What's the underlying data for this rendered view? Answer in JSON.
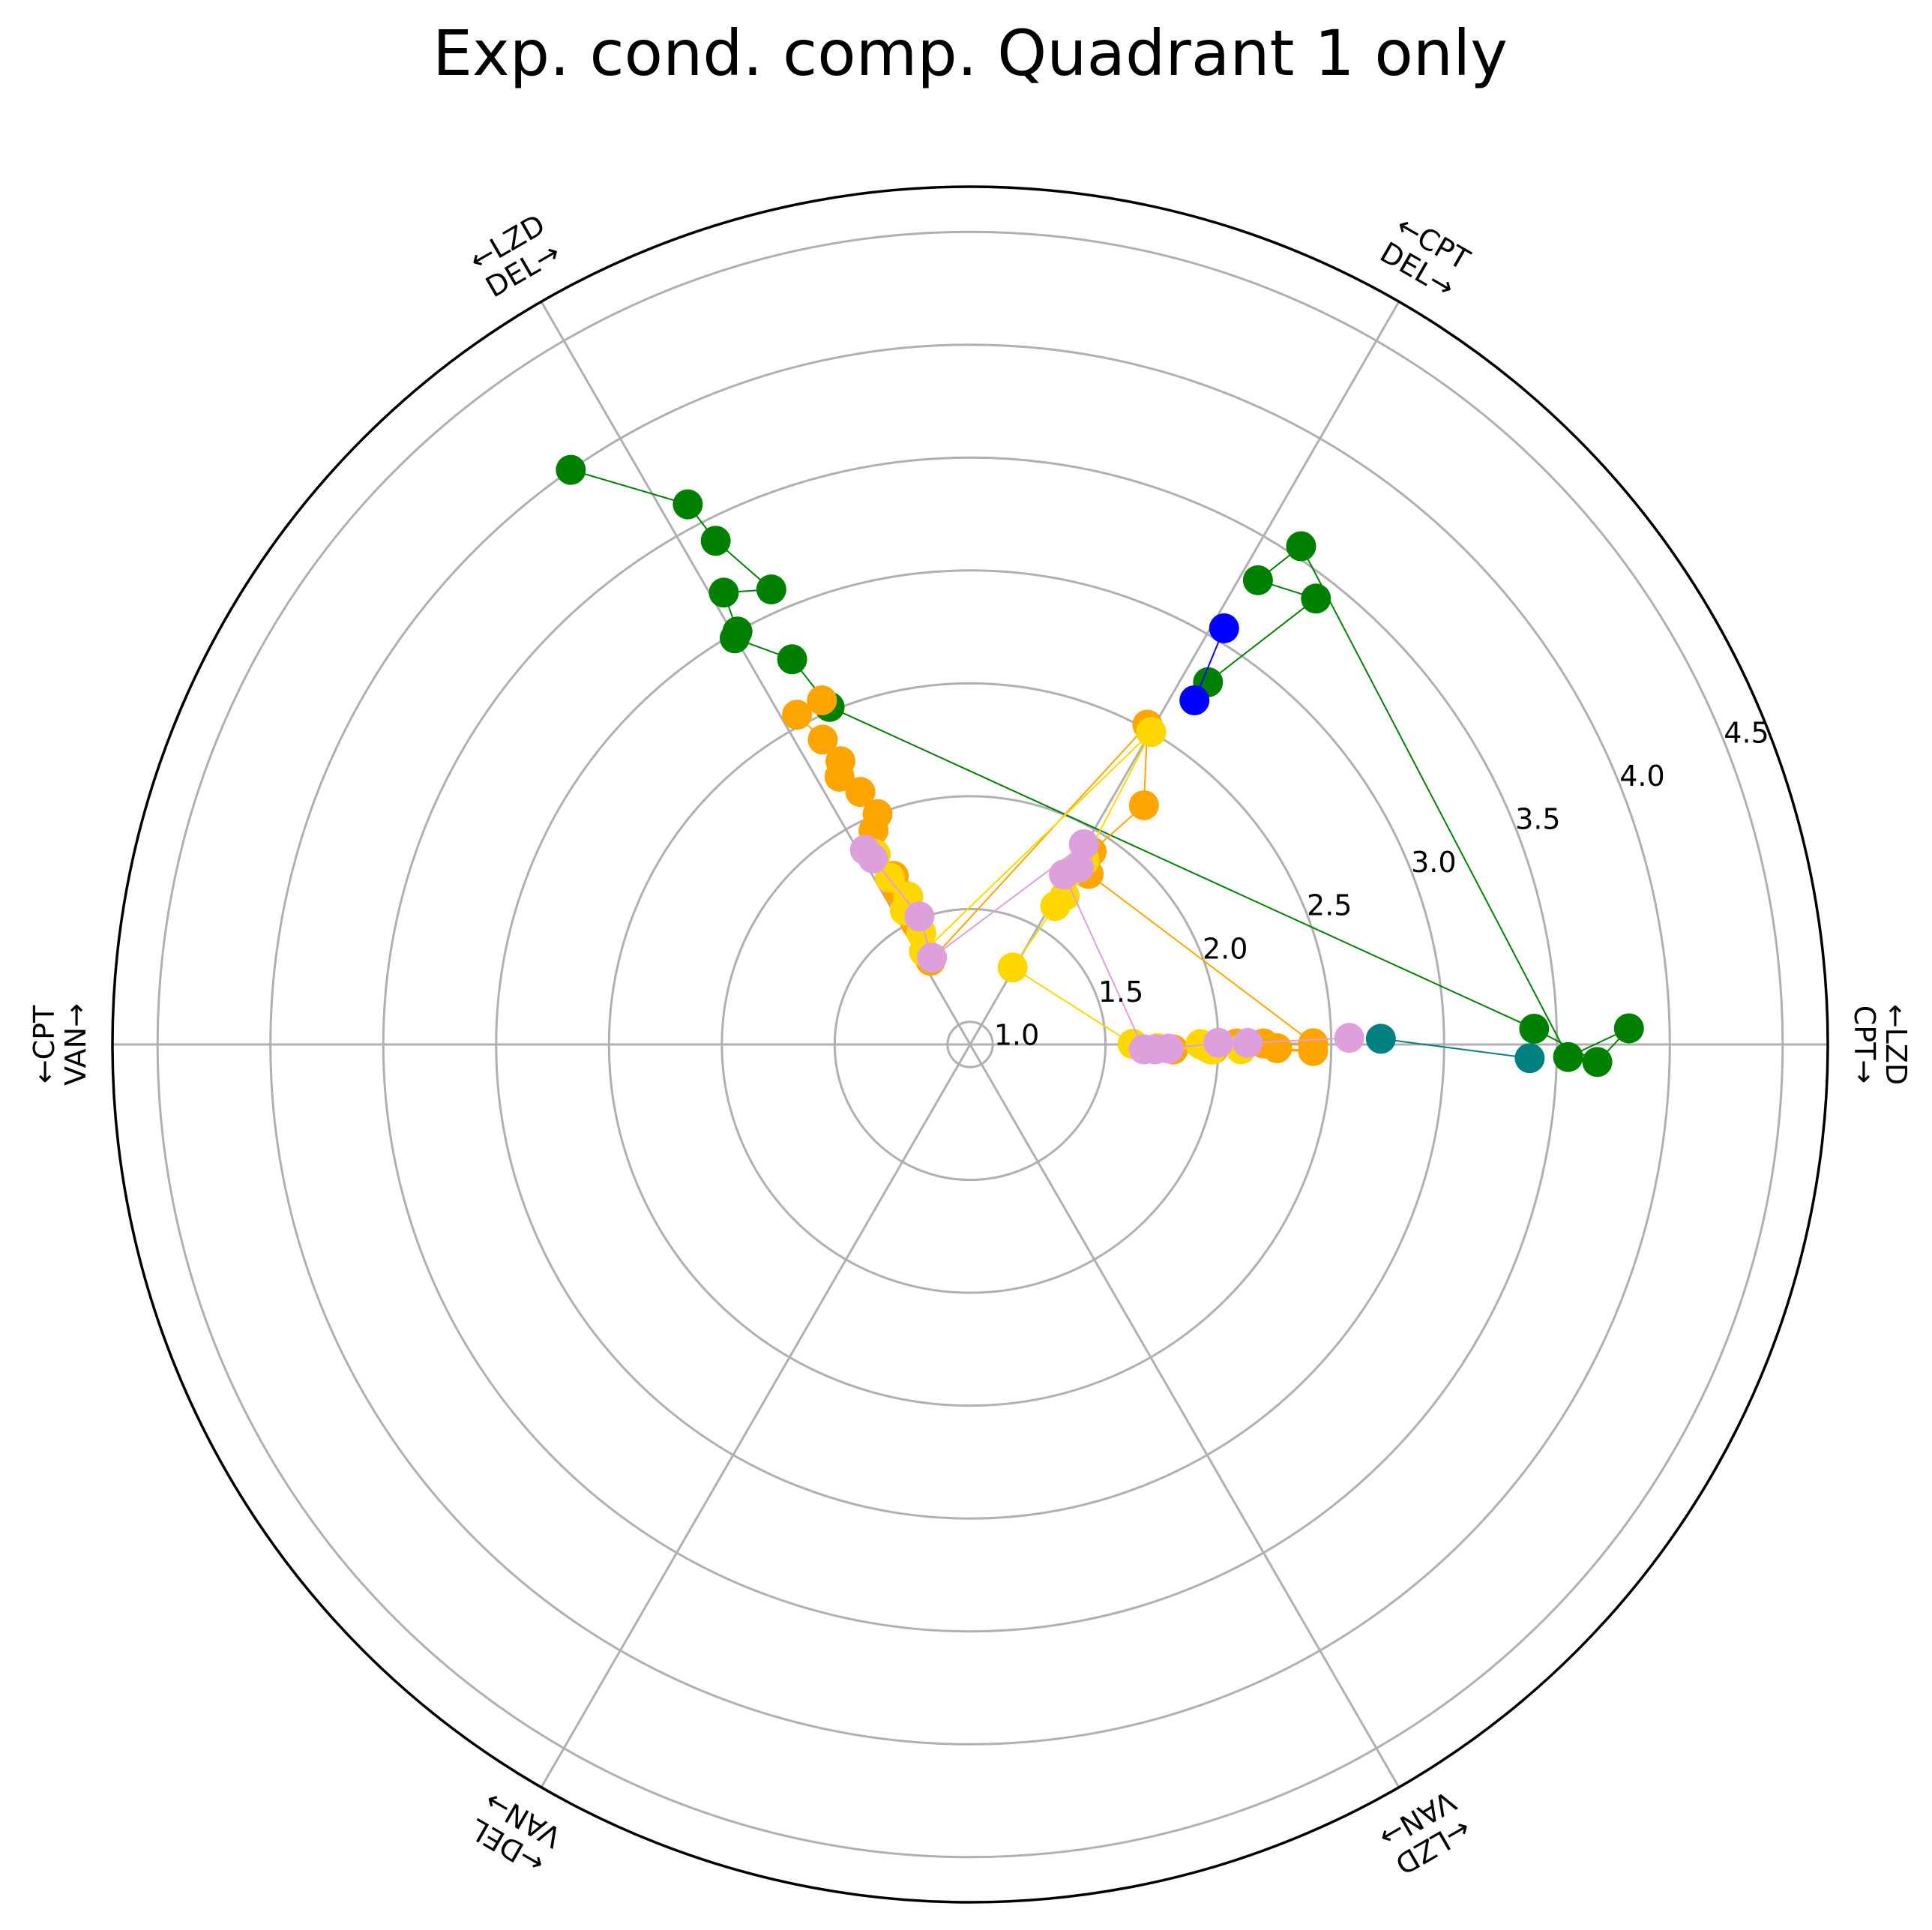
{
  "chart_data": {
    "type": "scatter",
    "subtype": "polar",
    "title": "Exp. cond. comp. Quadrant 1 only",
    "rlim": [
      0.9,
      4.7
    ],
    "rticks": [
      "1.0",
      "1.5",
      "2.0",
      "2.5",
      "3.0",
      "3.5",
      "4.0",
      "4.5"
    ],
    "grid": true,
    "spoke_angles_deg": [
      0,
      60,
      120,
      180,
      240,
      300
    ],
    "angle_labels": [
      {
        "angle_deg": 0,
        "line1": "←LZD",
        "line2": "CPT→"
      },
      {
        "angle_deg": 60,
        "line1": "←CPT",
        "line2": "DEL→"
      },
      {
        "angle_deg": 120,
        "line1": "←LZD",
        "line2": "DEL→"
      },
      {
        "angle_deg": 180,
        "line1": "←CPT",
        "line2": "VAN→"
      },
      {
        "angle_deg": 240,
        "line1": "←DEL",
        "line2": "VAN→"
      },
      {
        "angle_deg": 300,
        "line1": "←LZD",
        "line2": "VAN→"
      }
    ],
    "series": [
      {
        "color": "#008000",
        "values": [
          [
            124.8,
            4.0
          ],
          [
            117.6,
            3.6
          ],
          [
            116.8,
            3.4
          ],
          [
            113.6,
            3.1
          ],
          [
            118.6,
            3.18
          ],
          [
            119.4,
            3.0
          ],
          [
            120.1,
            2.98
          ],
          [
            114.8,
            2.78
          ],
          [
            112.6,
            2.52
          ],
          [
            1.6,
            3.4
          ],
          [
            -1.6,
            3.68
          ],
          [
            1.4,
            3.82
          ],
          [
            -1.2,
            3.55
          ],
          [
            56.4,
            3.55
          ],
          [
            58.2,
            3.32
          ],
          [
            52.2,
            3.4
          ],
          [
            56.7,
            2.82
          ]
        ]
      },
      {
        "color": "#0000ff",
        "values": [
          [
            58.6,
            3.06
          ],
          [
            56.9,
            2.72
          ]
        ]
      },
      {
        "color": "#008080",
        "values": [
          [
            0.8,
            2.72
          ],
          [
            -1.4,
            3.38
          ]
        ]
      },
      {
        "color": "#ffa500",
        "values": [
          [
            113.3,
            2.56
          ],
          [
            117.7,
            2.55
          ],
          [
            115.8,
            2.4
          ],
          [
            114.6,
            2.28
          ],
          [
            113.5,
            2.12
          ],
          [
            116.0,
            2.22
          ],
          [
            111.9,
            2.0
          ],
          [
            114.3,
            1.94
          ],
          [
            115.2,
            1.65
          ],
          [
            114.4,
            1.72
          ],
          [
            114.3,
            1.49
          ],
          [
            115.3,
            1.31
          ],
          [
            61.0,
            2.52
          ],
          [
            54.0,
            2.21
          ],
          [
            57.8,
            1.91
          ],
          [
            55.2,
            1.82
          ],
          [
            0.2,
            2.42
          ],
          [
            0.2,
            2.2
          ],
          [
            0.2,
            2.08
          ],
          [
            -0.7,
            2.26
          ],
          [
            -1.1,
            2.42
          ],
          [
            -1.4,
            1.8
          ],
          [
            -1.0,
            1.98
          ]
        ]
      },
      {
        "color": "#ffd700",
        "values": [
          [
            117.6,
            1.86
          ],
          [
            116.4,
            1.84
          ],
          [
            115.7,
            1.72
          ],
          [
            112.7,
            1.61
          ],
          [
            116.0,
            1.56
          ],
          [
            113.6,
            1.44
          ],
          [
            116.4,
            1.36
          ],
          [
            59.9,
            2.5
          ],
          [
            58.1,
            1.86
          ],
          [
            60.0,
            1.78
          ],
          [
            57.5,
            1.68
          ],
          [
            58.4,
            1.62
          ],
          [
            61.1,
            1.29
          ],
          [
            0.2,
            1.62
          ],
          [
            -1.1,
            1.73
          ],
          [
            -1.0,
            2.1
          ],
          [
            -0.7,
            1.95
          ],
          [
            -1.2,
            1.97
          ],
          [
            0.1,
            1.92
          ]
        ]
      },
      {
        "color": "#dda0dd",
        "values": [
          [
            118.4,
            1.88
          ],
          [
            117.6,
            1.83
          ],
          [
            111.6,
            1.51
          ],
          [
            113.7,
            1.32
          ],
          [
            60.4,
            1.92
          ],
          [
            58.4,
            1.82
          ],
          [
            61.1,
            1.76
          ],
          [
            -1.6,
            1.67
          ],
          [
            -1.5,
            1.72
          ],
          [
            -1.2,
            1.78
          ],
          [
            0.4,
            2.0
          ],
          [
            0.3,
            2.13
          ],
          [
            1.0,
            2.58
          ]
        ]
      }
    ]
  }
}
